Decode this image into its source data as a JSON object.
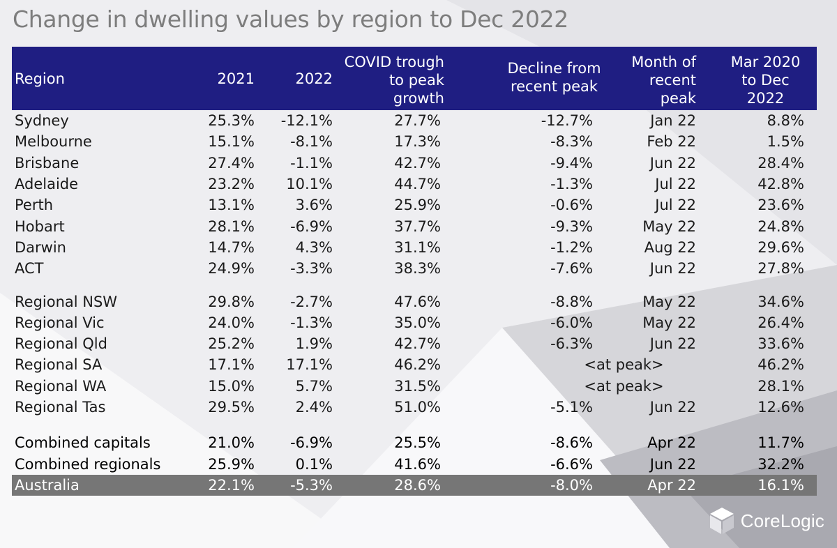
{
  "title": "Change in dwelling values by region to Dec 2022",
  "logo": {
    "text": "CoreLogic",
    "icon": "corelogic-cube-icon"
  },
  "colors": {
    "header_bg": "#1f1e82",
    "australia_row_bg": "#767676",
    "title": "#7d7d7d"
  },
  "chart_data": {
    "type": "table",
    "title": "Change in dwelling values by region to Dec 2022",
    "columns": [
      [
        "Region"
      ],
      [
        "2021"
      ],
      [
        "2022"
      ],
      [
        "COVID trough",
        "to peak",
        "growth"
      ],
      [
        "Decline from",
        "recent peak"
      ],
      [
        "Month of",
        "recent",
        "peak"
      ],
      [
        "Mar 2020",
        "to Dec",
        "2022"
      ]
    ],
    "groups": [
      {
        "rows": [
          {
            "region": "Sydney",
            "y2021": "25.3%",
            "y2022": "-12.1%",
            "trough": "27.7%",
            "decline": "-12.7%",
            "month": "Jan 22",
            "mar": "8.8%"
          },
          {
            "region": "Melbourne",
            "y2021": "15.1%",
            "y2022": "-8.1%",
            "trough": "17.3%",
            "decline": "-8.3%",
            "month": "Feb 22",
            "mar": "1.5%"
          },
          {
            "region": "Brisbane",
            "y2021": "27.4%",
            "y2022": "-1.1%",
            "trough": "42.7%",
            "decline": "-9.4%",
            "month": "Jun 22",
            "mar": "28.4%"
          },
          {
            "region": "Adelaide",
            "y2021": "23.2%",
            "y2022": "10.1%",
            "trough": "44.7%",
            "decline": "-1.3%",
            "month": "Jul 22",
            "mar": "42.8%"
          },
          {
            "region": "Perth",
            "y2021": "13.1%",
            "y2022": "3.6%",
            "trough": "25.9%",
            "decline": "-0.6%",
            "month": "Jul 22",
            "mar": "23.6%"
          },
          {
            "region": "Hobart",
            "y2021": "28.1%",
            "y2022": "-6.9%",
            "trough": "37.7%",
            "decline": "-9.3%",
            "month": "May 22",
            "mar": "24.8%"
          },
          {
            "region": "Darwin",
            "y2021": "14.7%",
            "y2022": "4.3%",
            "trough": "31.1%",
            "decline": "-1.2%",
            "month": "Aug 22",
            "mar": "29.6%"
          },
          {
            "region": "ACT",
            "y2021": "24.9%",
            "y2022": "-3.3%",
            "trough": "38.3%",
            "decline": "-7.6%",
            "month": "Jun 22",
            "mar": "27.8%"
          }
        ]
      },
      {
        "rows": [
          {
            "region": "Regional NSW",
            "y2021": "29.8%",
            "y2022": "-2.7%",
            "trough": "47.6%",
            "decline": "-8.8%",
            "month": "May 22",
            "mar": "34.6%"
          },
          {
            "region": "Regional Vic",
            "y2021": "24.0%",
            "y2022": "-1.3%",
            "trough": "35.0%",
            "decline": "-6.0%",
            "month": "May 22",
            "mar": "26.4%"
          },
          {
            "region": "Regional Qld",
            "y2021": "25.2%",
            "y2022": "1.9%",
            "trough": "42.7%",
            "decline": "-6.3%",
            "month": "Jun 22",
            "mar": "33.6%"
          },
          {
            "region": "Regional SA",
            "y2021": "17.1%",
            "y2022": "17.1%",
            "trough": "46.2%",
            "at_peak": "<at peak>",
            "mar": "46.2%"
          },
          {
            "region": "Regional WA",
            "y2021": "15.0%",
            "y2022": "5.7%",
            "trough": "31.5%",
            "at_peak": "<at peak>",
            "mar": "28.1%"
          },
          {
            "region": "Regional Tas",
            "y2021": "29.5%",
            "y2022": "2.4%",
            "trough": "51.0%",
            "decline": "-5.1%",
            "month": "Jun 22",
            "mar": "12.6%"
          }
        ]
      },
      {
        "rows": [
          {
            "region": "Combined capitals",
            "y2021": "21.0%",
            "y2022": "-6.9%",
            "trough": "25.5%",
            "decline": "-8.6%",
            "month": "Apr 22",
            "mar": "11.7%",
            "style": "combined"
          },
          {
            "region": "Combined regionals",
            "y2021": "25.9%",
            "y2022": "0.1%",
            "trough": "41.6%",
            "decline": "-6.6%",
            "month": "Jun 22",
            "mar": "32.2%",
            "style": "combined"
          },
          {
            "region": "Australia",
            "y2021": "22.1%",
            "y2022": "-5.3%",
            "trough": "28.6%",
            "decline": "-8.0%",
            "month": "Apr 22",
            "mar": "16.1%",
            "style": "australia"
          }
        ]
      }
    ]
  }
}
